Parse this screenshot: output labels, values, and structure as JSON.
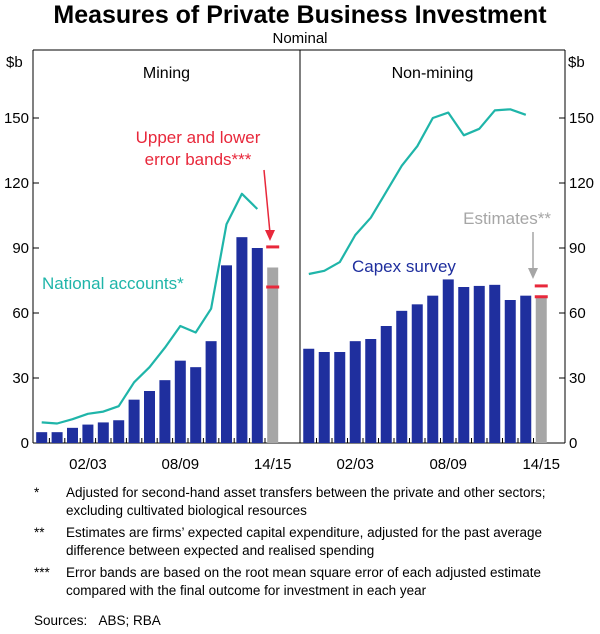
{
  "title": "Measures of Private Business Investment",
  "subtitle": "Nominal",
  "colors": {
    "capex": "#1f2f9e",
    "estimate": "#a6a6a6",
    "national_accounts": "#1fb5a9",
    "error_band": "#e8283b",
    "annotation_red": "#e8283b",
    "annotation_grey": "#a6a6a6",
    "annotation_teal": "#1fb5a9",
    "annotation_blue": "#1f2f9e"
  },
  "chart_data": [
    {
      "type": "bar",
      "panel_title": "Mining",
      "ylabel": "$b",
      "ylim": [
        0,
        180
      ],
      "yticks": [
        0,
        30,
        60,
        90,
        120,
        150
      ],
      "xtick_labels": [
        {
          "label": "02/03",
          "index": 3.5
        },
        {
          "label": "08/09",
          "index": 9.5
        },
        {
          "label": "14/15",
          "index": 15.5
        }
      ],
      "series": [
        {
          "name": "Capex survey",
          "kind": "bar",
          "values": [
            5,
            5,
            7,
            8.5,
            9.5,
            10.5,
            20,
            24,
            29,
            38,
            35,
            47,
            82,
            95,
            90,
            null
          ]
        },
        {
          "name": "Estimates",
          "kind": "bar",
          "values": [
            null,
            null,
            null,
            null,
            null,
            null,
            null,
            null,
            null,
            null,
            null,
            null,
            null,
            null,
            null,
            81
          ]
        },
        {
          "name": "National accounts",
          "kind": "line",
          "values": [
            9.5,
            9,
            11,
            13.5,
            14.5,
            17,
            28,
            35,
            44,
            54,
            51,
            62,
            101,
            115,
            108,
            null
          ]
        },
        {
          "name": "Upper and lower error bands",
          "kind": "error_band",
          "index": 15,
          "upper": 90.5,
          "lower": 72
        }
      ],
      "annotations": [
        {
          "text_lines": [
            "Upper and lower",
            "error bands***"
          ],
          "color_key": "annotation_red",
          "arrow": true
        },
        {
          "text_lines": [
            "National accounts*"
          ],
          "color_key": "annotation_teal",
          "arrow": false
        }
      ]
    },
    {
      "type": "bar",
      "panel_title": "Non-mining",
      "ylabel": "$b",
      "ylim": [
        0,
        180
      ],
      "yticks": [
        0,
        30,
        60,
        90,
        120,
        150
      ],
      "xtick_labels": [
        {
          "label": "02/03",
          "index": 3.5
        },
        {
          "label": "08/09",
          "index": 9.5
        },
        {
          "label": "14/15",
          "index": 15.5
        }
      ],
      "series": [
        {
          "name": "Capex survey",
          "kind": "bar",
          "values": [
            43.5,
            42,
            42,
            47,
            48,
            54,
            61,
            64,
            68,
            75.5,
            72,
            72.5,
            73,
            66,
            68,
            null
          ]
        },
        {
          "name": "Estimates",
          "kind": "bar",
          "values": [
            null,
            null,
            null,
            null,
            null,
            null,
            null,
            null,
            null,
            null,
            null,
            null,
            null,
            null,
            null,
            68
          ]
        },
        {
          "name": "National accounts",
          "kind": "line",
          "values": [
            78,
            79.5,
            83.5,
            96,
            104,
            116,
            128,
            137,
            150,
            152.5,
            142,
            145,
            153.5,
            154,
            151.5,
            null
          ]
        },
        {
          "name": "Upper and lower error bands",
          "kind": "error_band",
          "index": 15,
          "upper": 72.5,
          "lower": 67.5
        }
      ],
      "annotations": [
        {
          "text_lines": [
            "Estimates**"
          ],
          "color_key": "annotation_grey",
          "arrow": true
        },
        {
          "text_lines": [
            "Capex survey"
          ],
          "color_key": "annotation_blue",
          "arrow": false
        }
      ]
    }
  ],
  "notes": [
    {
      "mark": "*",
      "text": "Adjusted for second-hand asset transfers between the private and other sectors; excluding cultivated biological resources"
    },
    {
      "mark": "**",
      "text": "Estimates are firms’ expected capital expenditure, adjusted for the past average difference between expected and realised spending"
    },
    {
      "mark": "***",
      "text": "Error bands are based on the root mean square error of each adjusted estimate compared with the final outcome for investment in each year"
    }
  ],
  "sources": "Sources:   ABS; RBA"
}
